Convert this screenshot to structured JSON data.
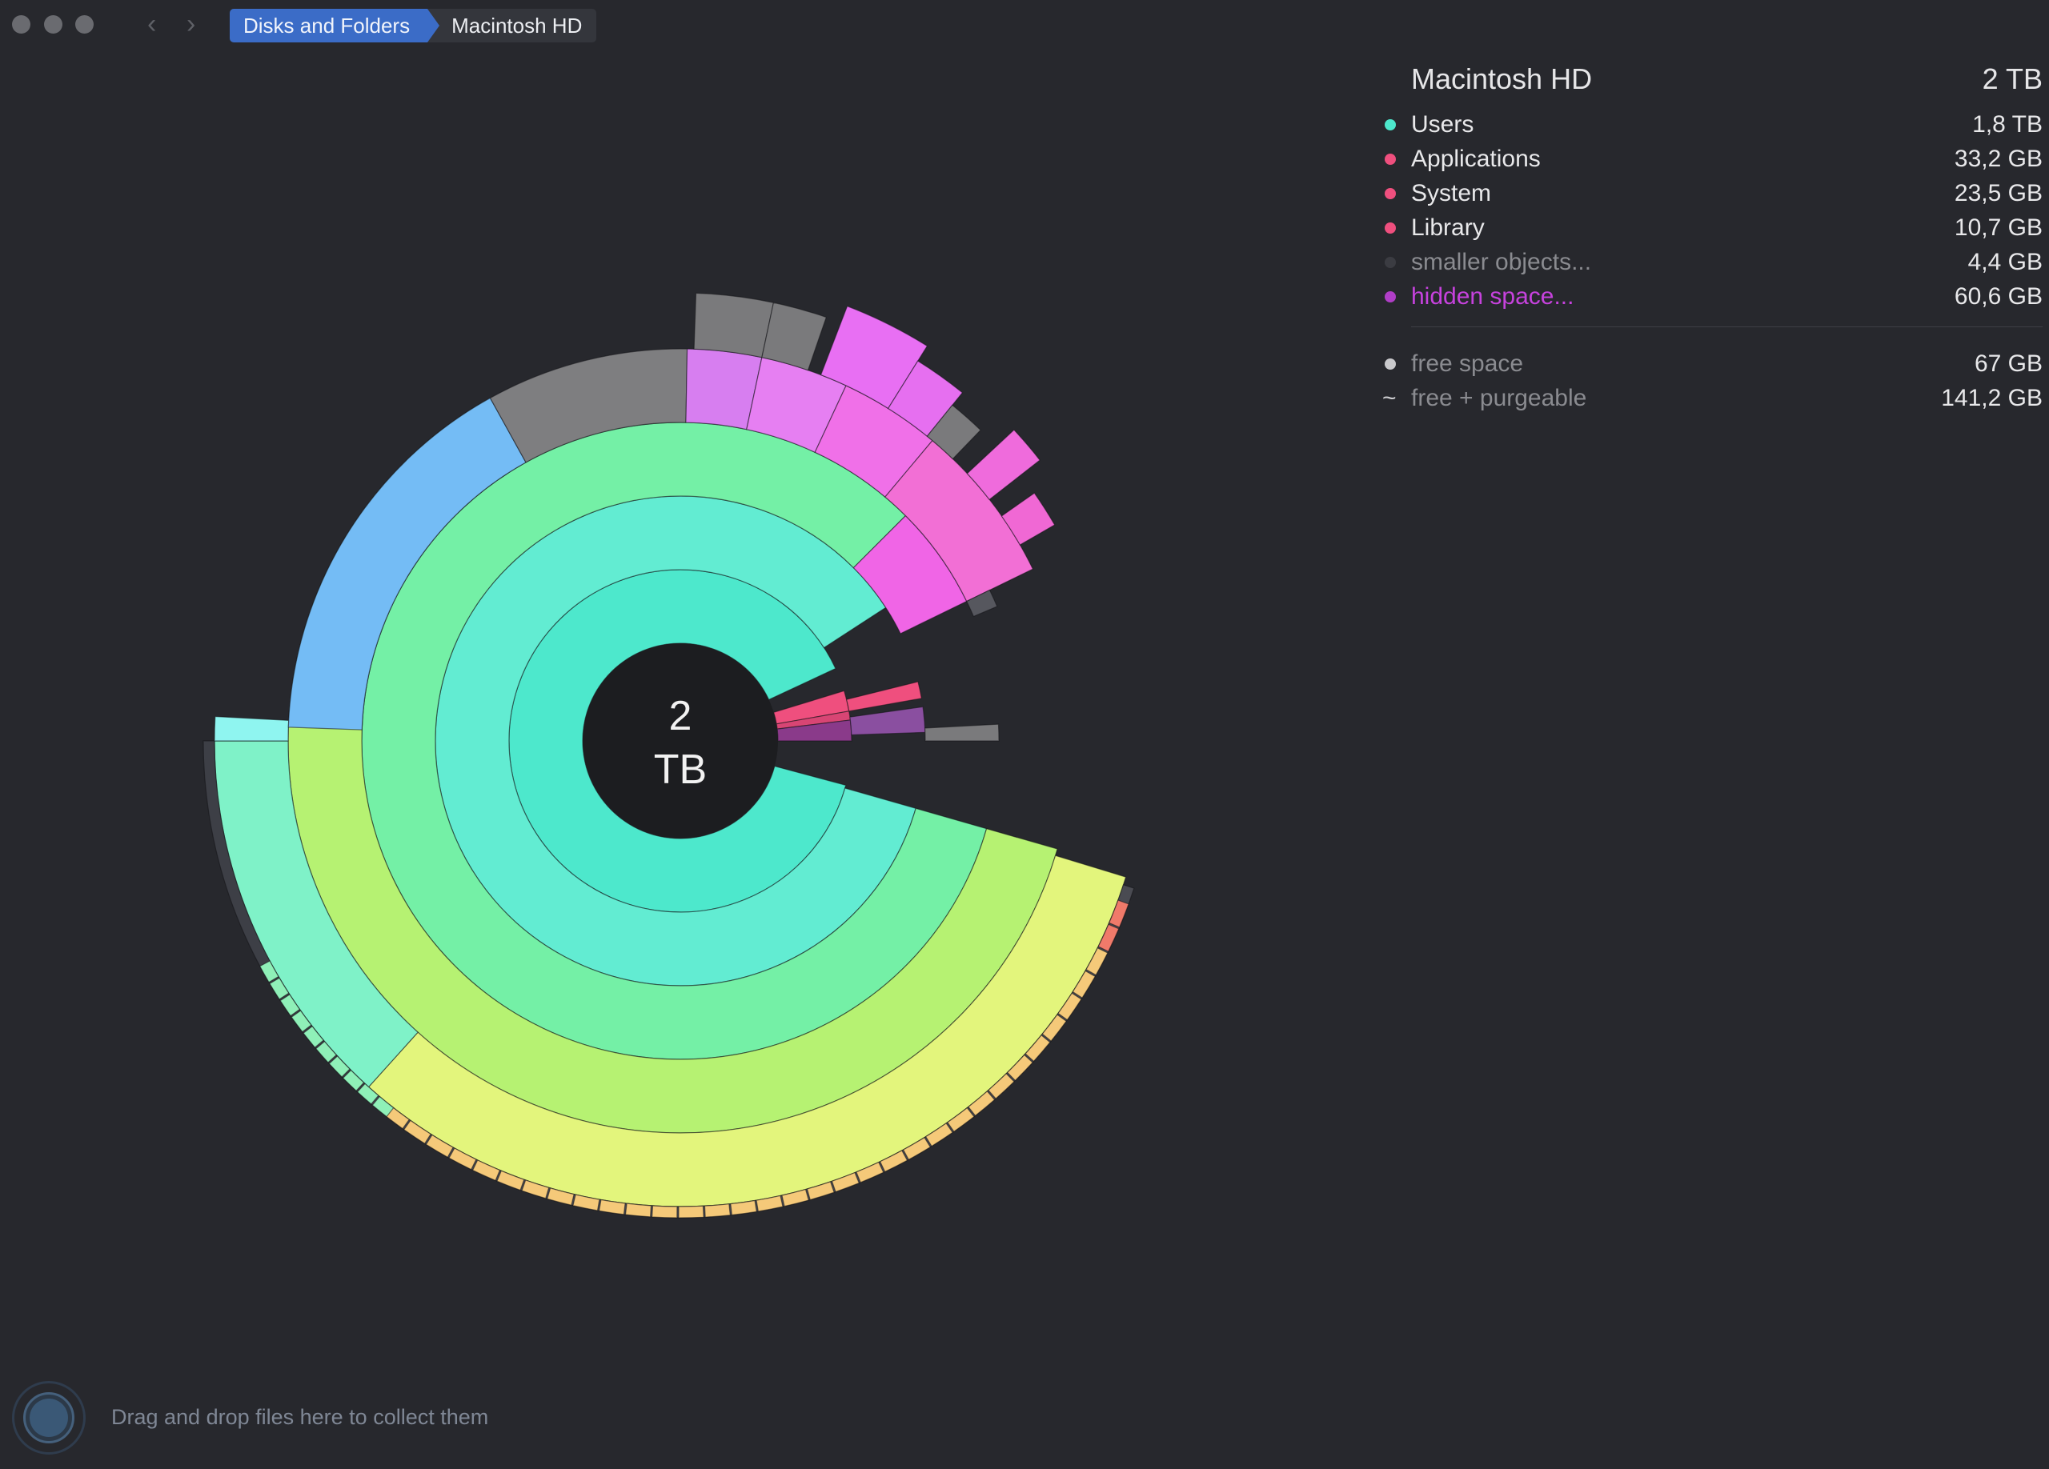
{
  "titlebar": {
    "breadcrumb": [
      "Disks and Folders",
      "Macintosh HD"
    ]
  },
  "center": {
    "line1": "2",
    "line2": "TB"
  },
  "panel": {
    "title": "Macintosh HD",
    "total": "2 TB",
    "items": [
      {
        "name": "Users",
        "size": "1,8 TB",
        "color": "#4de8cc"
      },
      {
        "name": "Applications",
        "size": "33,2 GB",
        "color": "#ef4f7e"
      },
      {
        "name": "System",
        "size": "23,5 GB",
        "color": "#ef4f7e"
      },
      {
        "name": "Library",
        "size": "10,7 GB",
        "color": "#ef4f7e"
      },
      {
        "name": "smaller objects...",
        "size": "4,4 GB",
        "color": "#3b3c42"
      },
      {
        "name": "hidden space...",
        "size": "60,6 GB",
        "color": "#b03ec7"
      }
    ],
    "free": {
      "name": "free space",
      "size": "67 GB"
    },
    "purgeable": {
      "name": "free + purgeable",
      "size": "141,2 GB"
    }
  },
  "dropzone": {
    "text": "Drag and drop files here to collect them"
  },
  "colors": {
    "background": "#27282d",
    "users": "#4de8cc",
    "system": "#ef4f7e",
    "hidden": "#b03ec7",
    "breadcrumb_active": "#3b6cc7"
  }
}
